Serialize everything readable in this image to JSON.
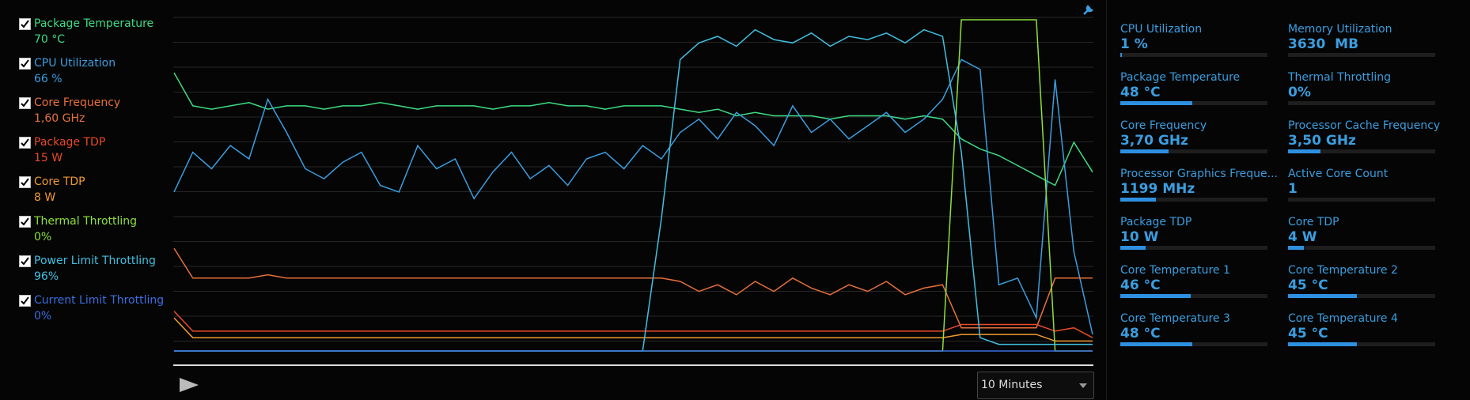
{
  "monitor": {
    "series": [
      {
        "name": "Package Temperature",
        "value": "70 °C",
        "color": "#3ddc84",
        "checked": true,
        "values": [
          84,
          74,
          73,
          74,
          75,
          73,
          74,
          74,
          73,
          74,
          74,
          75,
          74,
          73,
          74,
          74,
          74,
          73,
          74,
          74,
          75,
          74,
          74,
          73,
          74,
          74,
          74,
          73,
          72,
          73,
          71,
          72,
          71,
          71,
          71,
          70,
          71,
          71,
          71,
          70,
          71,
          70,
          64,
          61,
          59,
          56,
          53,
          50,
          63,
          54
        ]
      },
      {
        "name": "CPU Utilization",
        "value": "66 %",
        "color": "#3a9ee0",
        "checked": true,
        "values": [
          48,
          60,
          55,
          62,
          58,
          76,
          66,
          55,
          52,
          57,
          60,
          50,
          48,
          62,
          55,
          58,
          46,
          54,
          60,
          52,
          56,
          50,
          58,
          60,
          55,
          62,
          58,
          66,
          70,
          64,
          72,
          68,
          62,
          74,
          66,
          70,
          64,
          68,
          72,
          66,
          70,
          76,
          88,
          85,
          20,
          22,
          10,
          82,
          30,
          5
        ]
      },
      {
        "name": "Core Frequency",
        "value": "1,60 GHz",
        "color": "#e8703a",
        "checked": true,
        "values": [
          31,
          22,
          22,
          22,
          22,
          23,
          22,
          22,
          22,
          22,
          22,
          22,
          22,
          22,
          22,
          22,
          22,
          22,
          22,
          22,
          22,
          22,
          22,
          22,
          22,
          22,
          22,
          21,
          18,
          20,
          17,
          21,
          18,
          22,
          19,
          17,
          20,
          18,
          21,
          17,
          19,
          20,
          7,
          7,
          7,
          7,
          7,
          22,
          22,
          22
        ]
      },
      {
        "name": "Package TDP",
        "value": "15 W",
        "color": "#e84a2a",
        "checked": true,
        "values": [
          12,
          6,
          6,
          6,
          6,
          6,
          6,
          6,
          6,
          6,
          6,
          6,
          6,
          6,
          6,
          6,
          6,
          6,
          6,
          6,
          6,
          6,
          6,
          6,
          6,
          6,
          6,
          6,
          6,
          6,
          6,
          6,
          6,
          6,
          6,
          6,
          6,
          6,
          6,
          6,
          6,
          6,
          8,
          8,
          8,
          8,
          8,
          6,
          7,
          4
        ]
      },
      {
        "name": "Core TDP",
        "value": "8 W",
        "color": "#f09a30",
        "checked": true,
        "values": [
          10,
          4,
          4,
          4,
          4,
          4,
          4,
          4,
          4,
          4,
          4,
          4,
          4,
          4,
          4,
          4,
          4,
          4,
          4,
          4,
          4,
          4,
          4,
          4,
          4,
          4,
          4,
          4,
          4,
          4,
          4,
          4,
          4,
          4,
          4,
          4,
          4,
          4,
          4,
          4,
          4,
          4,
          5,
          5,
          5,
          5,
          5,
          3,
          3,
          3
        ]
      },
      {
        "name": "Thermal Throttling",
        "value": "0%",
        "color": "#8ee03a",
        "checked": true,
        "values": [
          0,
          0,
          0,
          0,
          0,
          0,
          0,
          0,
          0,
          0,
          0,
          0,
          0,
          0,
          0,
          0,
          0,
          0,
          0,
          0,
          0,
          0,
          0,
          0,
          0,
          0,
          0,
          0,
          0,
          0,
          0,
          0,
          0,
          0,
          0,
          0,
          0,
          0,
          0,
          0,
          0,
          0,
          100,
          100,
          100,
          100,
          100,
          0,
          0,
          0
        ]
      },
      {
        "name": "Power Limit Throttling",
        "value": "96%",
        "color": "#40c0e0",
        "checked": true,
        "values": [
          0,
          0,
          0,
          0,
          0,
          0,
          0,
          0,
          0,
          0,
          0,
          0,
          0,
          0,
          0,
          0,
          0,
          0,
          0,
          0,
          0,
          0,
          0,
          0,
          0,
          0,
          40,
          88,
          93,
          95,
          92,
          97,
          94,
          93,
          96,
          92,
          95,
          94,
          96,
          93,
          97,
          95,
          60,
          4,
          2,
          2,
          2,
          2,
          2,
          2
        ]
      },
      {
        "name": "Current Limit Throttling",
        "value": "0%",
        "color": "#3a6ee0",
        "checked": true,
        "values": [
          0,
          0,
          0,
          0,
          0,
          0,
          0,
          0,
          0,
          0,
          0,
          0,
          0,
          0,
          0,
          0,
          0,
          0,
          0,
          0,
          0,
          0,
          0,
          0,
          0,
          0,
          0,
          0,
          0,
          0,
          0,
          0,
          0,
          0,
          0,
          0,
          0,
          0,
          0,
          0,
          0,
          0,
          0,
          0,
          0,
          0,
          0,
          0,
          0,
          0
        ]
      }
    ],
    "ylim": [
      0,
      100
    ],
    "time_range": "10 Minutes",
    "metrics": [
      {
        "label": "CPU Utilization",
        "value": "1 %",
        "bar": 1
      },
      {
        "label": "Memory Utilization",
        "value": "3630  MB",
        "bar": 0
      },
      {
        "label": "Package Temperature",
        "value": "48 °C",
        "bar": 49
      },
      {
        "label": "Thermal Throttling",
        "value": "0%",
        "bar": 0
      },
      {
        "label": "Core Frequency",
        "value": "3,70 GHz",
        "bar": 33
      },
      {
        "label": "Processor Cache Frequency",
        "value": "3,50 GHz",
        "bar": 22
      },
      {
        "label": "Processor Graphics Freque...",
        "value": "1199 MHz",
        "bar": 24
      },
      {
        "label": "Active Core Count",
        "value": "1",
        "bar": 0
      },
      {
        "label": "Package TDP",
        "value": "10 W",
        "bar": 17
      },
      {
        "label": "Core TDP",
        "value": "4 W",
        "bar": 11
      },
      {
        "label": "Core Temperature 1",
        "value": "46 °C",
        "bar": 48
      },
      {
        "label": "Core Temperature 2",
        "value": "45 °C",
        "bar": 47
      },
      {
        "label": "Core Temperature 3",
        "value": "48 °C",
        "bar": 49
      },
      {
        "label": "Core Temperature 4",
        "value": "45 °C",
        "bar": 47
      }
    ]
  }
}
